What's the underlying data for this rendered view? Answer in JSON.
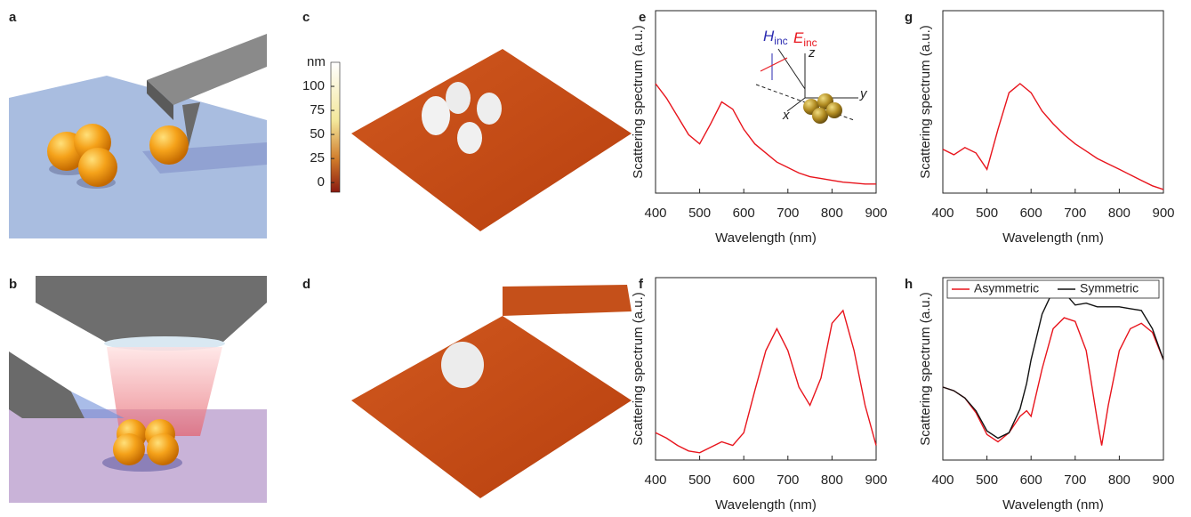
{
  "panel_labels": [
    "a",
    "b",
    "c",
    "d",
    "e",
    "f",
    "g",
    "h"
  ],
  "colorbar": {
    "label": "nm",
    "lim": [
      -10,
      125
    ],
    "ticks": [
      100,
      75,
      50,
      25,
      0
    ]
  },
  "inset": {
    "h_label": "H",
    "h_sub": "inc",
    "e_label": "E",
    "e_sub": "inc",
    "x": "x",
    "y": "y",
    "z": "z"
  },
  "chart_data": [
    {
      "type": "line",
      "xlabel": "Wavelength (nm)",
      "ylabel": "Scattering spectrum (a.u.)",
      "x": [
        400,
        425,
        450,
        475,
        500,
        525,
        550,
        575,
        600,
        625,
        650,
        675,
        700,
        725,
        750,
        775,
        800,
        825,
        850,
        875,
        900
      ],
      "values": [
        0.6,
        0.52,
        0.42,
        0.32,
        0.27,
        0.38,
        0.5,
        0.46,
        0.35,
        0.27,
        0.22,
        0.17,
        0.14,
        0.11,
        0.09,
        0.08,
        0.07,
        0.06,
        0.055,
        0.05,
        0.05
      ],
      "color": "#e8141c",
      "xlim": [
        400,
        900
      ],
      "xticks": [
        400,
        500,
        600,
        700,
        800,
        900
      ],
      "ylim": [
        0,
        1
      ]
    },
    {
      "type": "line",
      "xlabel": "Wavelength (nm)",
      "ylabel": "Scattering spectrum (a.u.)",
      "x": [
        400,
        425,
        450,
        475,
        500,
        525,
        550,
        575,
        600,
        625,
        650,
        675,
        700,
        725,
        750,
        775,
        800,
        825,
        850,
        875,
        900
      ],
      "values": [
        0.15,
        0.12,
        0.08,
        0.05,
        0.04,
        0.07,
        0.1,
        0.08,
        0.15,
        0.38,
        0.6,
        0.72,
        0.6,
        0.4,
        0.3,
        0.45,
        0.75,
        0.82,
        0.6,
        0.3,
        0.08
      ],
      "color": "#e8141c",
      "xlim": [
        400,
        900
      ],
      "xticks": [
        400,
        500,
        600,
        700,
        800,
        900
      ],
      "ylim": [
        0,
        1
      ]
    },
    {
      "type": "line",
      "xlabel": "Wavelength (nm)",
      "ylabel": "Scattering spectrum (a.u.)",
      "x": [
        400,
        425,
        450,
        475,
        500,
        525,
        550,
        575,
        600,
        625,
        650,
        675,
        700,
        725,
        750,
        775,
        800,
        825,
        850,
        875,
        900
      ],
      "values": [
        0.24,
        0.21,
        0.25,
        0.22,
        0.13,
        0.35,
        0.55,
        0.6,
        0.55,
        0.45,
        0.38,
        0.32,
        0.27,
        0.23,
        0.19,
        0.16,
        0.13,
        0.1,
        0.07,
        0.04,
        0.02
      ],
      "color": "#e8141c",
      "xlim": [
        400,
        900
      ],
      "xticks": [
        400,
        500,
        600,
        700,
        800,
        900
      ],
      "ylim": [
        0,
        1
      ]
    },
    {
      "type": "line",
      "xlabel": "Wavelength (nm)",
      "ylabel": "Scattering spectrum (a.u.)",
      "x": [
        400,
        425,
        450,
        475,
        500,
        525,
        550,
        575,
        590,
        600,
        625,
        650,
        675,
        700,
        725,
        750,
        760,
        775,
        800,
        825,
        850,
        875,
        900
      ],
      "series": [
        {
          "name": "Asymmetric",
          "color": "#e8141c",
          "values": [
            0.4,
            0.38,
            0.34,
            0.26,
            0.14,
            0.1,
            0.15,
            0.24,
            0.27,
            0.24,
            0.5,
            0.72,
            0.78,
            0.76,
            0.6,
            0.22,
            0.08,
            0.3,
            0.6,
            0.72,
            0.75,
            0.7,
            0.55
          ]
        },
        {
          "name": "Symmetric",
          "color": "#111111",
          "values": [
            0.4,
            0.38,
            0.34,
            0.27,
            0.16,
            0.12,
            0.15,
            0.28,
            0.42,
            0.55,
            0.8,
            0.93,
            0.92,
            0.85,
            0.86,
            0.84,
            0.84,
            0.84,
            0.84,
            0.83,
            0.82,
            0.72,
            0.55
          ]
        }
      ],
      "legend": "top",
      "xlim": [
        400,
        900
      ],
      "xticks": [
        400,
        500,
        600,
        700,
        800,
        900
      ],
      "ylim": [
        0,
        1
      ]
    }
  ]
}
